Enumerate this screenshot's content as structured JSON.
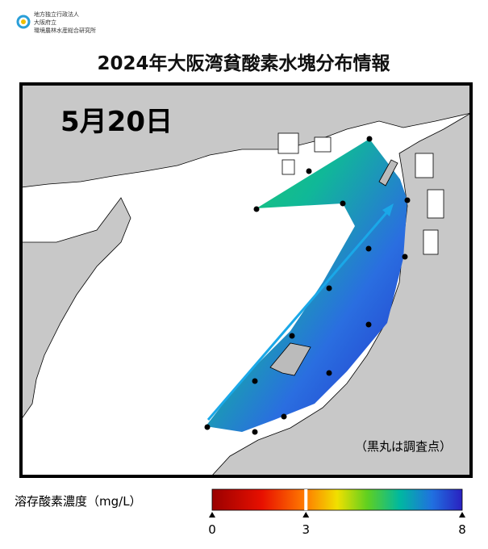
{
  "header": {
    "organization": [
      "地方独立行政法人",
      "大阪府立",
      "環境農林水産総合研究所"
    ],
    "title": "2024年大阪湾貧酸素水塊分布情報"
  },
  "map": {
    "date": "5月20日",
    "note": "（黒丸は調査点）"
  },
  "colorbar": {
    "label": "溶存酸素濃度（mg/L）",
    "range": [
      0,
      8
    ],
    "ticks": [
      0,
      3,
      8
    ]
  }
}
